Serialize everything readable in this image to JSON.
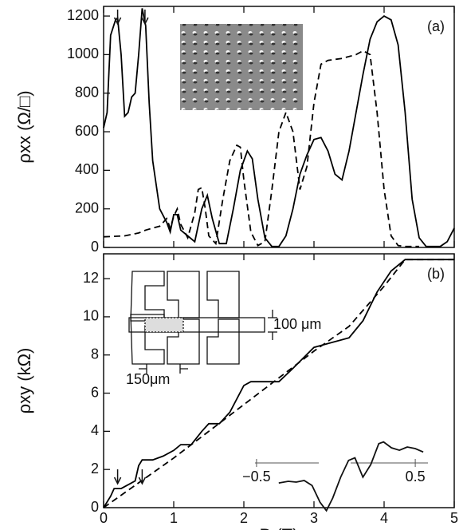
{
  "chart_data": [
    {
      "type": "line",
      "panel_label": "(a)",
      "ylabel": "ρxx (Ω/□)",
      "xlim": [
        0,
        5
      ],
      "xticks": [
        0,
        1,
        2,
        3,
        4,
        5
      ],
      "ylim": [
        0,
        1250
      ],
      "yticks": [
        0,
        200,
        400,
        600,
        800,
        1000,
        1200
      ],
      "arrows_x": [
        0.2,
        0.59
      ],
      "series": [
        {
          "linestyle": "solid",
          "color": "#000000",
          "x": [
            0,
            0.05,
            0.1,
            0.17,
            0.2,
            0.25,
            0.3,
            0.35,
            0.4,
            0.45,
            0.5,
            0.55,
            0.6,
            0.65,
            0.7,
            0.8,
            0.9,
            0.95,
            1.0,
            1.05,
            1.1,
            1.2,
            1.3,
            1.4,
            1.48,
            1.55,
            1.65,
            1.75,
            1.85,
            1.95,
            2.05,
            2.12,
            2.2,
            2.3,
            2.4,
            2.5,
            2.6,
            2.7,
            2.8,
            2.9,
            3.0,
            3.1,
            3.2,
            3.3,
            3.4,
            3.5,
            3.6,
            3.7,
            3.8,
            3.9,
            4.0,
            4.1,
            4.2,
            4.3,
            4.4,
            4.5,
            4.6,
            4.8,
            4.9,
            5.0
          ],
          "values": [
            620,
            700,
            1100,
            1180,
            1190,
            1000,
            680,
            700,
            780,
            800,
            1000,
            1240,
            1150,
            750,
            450,
            200,
            130,
            80,
            170,
            170,
            90,
            60,
            30,
            200,
            270,
            150,
            20,
            20,
            200,
            400,
            500,
            460,
            250,
            50,
            5,
            5,
            60,
            200,
            380,
            480,
            560,
            570,
            500,
            380,
            350,
            500,
            700,
            900,
            1080,
            1170,
            1200,
            1180,
            1050,
            700,
            250,
            50,
            5,
            5,
            30,
            100
          ]
        },
        {
          "linestyle": "dashed",
          "color": "#000000",
          "x": [
            0,
            0.3,
            0.5,
            0.6,
            0.7,
            0.8,
            0.9,
            0.95,
            1.0,
            1.05,
            1.1,
            1.2,
            1.3,
            1.35,
            1.4,
            1.45,
            1.5,
            1.6,
            1.7,
            1.8,
            1.9,
            1.95,
            2.0,
            2.1,
            2.2,
            2.3,
            2.4,
            2.5,
            2.6,
            2.7,
            2.8,
            2.9,
            3.0,
            3.1,
            3.2,
            3.4,
            3.6,
            3.7,
            3.8,
            3.9,
            4.0,
            4.1,
            4.2,
            4.3,
            4.5
          ],
          "values": [
            55,
            60,
            75,
            90,
            100,
            110,
            150,
            100,
            160,
            200,
            120,
            50,
            180,
            300,
            310,
            200,
            60,
            20,
            250,
            450,
            530,
            520,
            350,
            80,
            10,
            30,
            300,
            600,
            700,
            600,
            300,
            420,
            750,
            950,
            970,
            980,
            1000,
            1020,
            1000,
            700,
            300,
            60,
            10,
            5,
            5
          ]
        }
      ]
    },
    {
      "type": "line",
      "panel_label": "(b)",
      "ylabel": "ρxy (kΩ)",
      "xlabel": "B (T)",
      "xlim": [
        0,
        5
      ],
      "xticks": [
        0,
        1,
        2,
        3,
        4,
        5
      ],
      "ylim": [
        0,
        13.3
      ],
      "yticks": [
        0,
        2,
        4,
        6,
        8,
        10,
        12
      ],
      "arrows_x": [
        0.2,
        0.55
      ],
      "device_labels": [
        "100 μm",
        "150μm"
      ],
      "series": [
        {
          "linestyle": "solid",
          "color": "#000000",
          "x": [
            0,
            0.1,
            0.15,
            0.25,
            0.35,
            0.45,
            0.5,
            0.55,
            0.7,
            0.85,
            1.0,
            1.1,
            1.25,
            1.4,
            1.5,
            1.65,
            1.8,
            2.0,
            2.1,
            2.5,
            2.7,
            3.0,
            3.2,
            3.5,
            3.7,
            3.9,
            4.1,
            4.3,
            4.6,
            5.0
          ],
          "values": [
            0,
            0.6,
            1.0,
            1.0,
            1.2,
            1.4,
            2.2,
            2.5,
            2.5,
            2.7,
            3.0,
            3.3,
            3.3,
            4.0,
            4.4,
            4.4,
            5.0,
            6.4,
            6.6,
            6.6,
            7.3,
            8.4,
            8.6,
            8.9,
            9.8,
            11.3,
            12.4,
            13.0,
            13.0,
            13.0
          ]
        },
        {
          "linestyle": "dashed",
          "color": "#000000",
          "x": [
            0,
            0.5,
            1,
            1.5,
            2,
            2.5,
            3,
            3.5,
            4,
            4.3,
            5
          ],
          "values": [
            0,
            1.3,
            2.6,
            4.0,
            5.4,
            6.8,
            8.2,
            9.5,
            11.6,
            13.0,
            13.0
          ]
        }
      ]
    },
    {
      "type": "inset-line",
      "xlim": [
        -0.61,
        0.62
      ],
      "xticks": [
        {
          "value": -0.5,
          "label": "−0.5"
        },
        0.5
      ],
      "ylim": [
        0,
        10
      ],
      "x": [
        -0.36,
        -0.3,
        -0.25,
        -0.2,
        -0.15,
        -0.1,
        -0.06,
        -0.02,
        0.03,
        0.08,
        0.12,
        0.17,
        0.22,
        0.27,
        0.3,
        0.35,
        0.4,
        0.45,
        0.5,
        0.55
      ],
      "values": [
        3.8,
        4.0,
        3.9,
        4.1,
        3.5,
        1.5,
        0.5,
        2.0,
        4.5,
        6.5,
        6.8,
        4.5,
        6.0,
        8.5,
        8.7,
        8.0,
        7.7,
        8.1,
        7.9,
        7.5
      ]
    }
  ]
}
